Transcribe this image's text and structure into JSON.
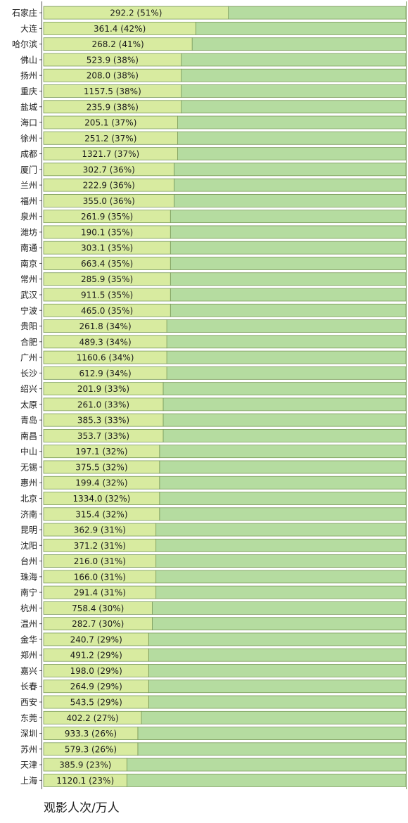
{
  "chart_data": {
    "type": "bar",
    "orientation": "horizontal",
    "stacked": "percent",
    "categories": [
      "石家庄",
      "大连",
      "哈尔滨",
      "佛山",
      "扬州",
      "重庆",
      "盐城",
      "海口",
      "徐州",
      "成都",
      "厦门",
      "兰州",
      "福州",
      "泉州",
      "潍坊",
      "南通",
      "南京",
      "常州",
      "武汉",
      "宁波",
      "贵阳",
      "合肥",
      "广州",
      "长沙",
      "绍兴",
      "太原",
      "青岛",
      "南昌",
      "中山",
      "无锡",
      "惠州",
      "北京",
      "济南",
      "昆明",
      "沈阳",
      "台州",
      "珠海",
      "南宁",
      "杭州",
      "温州",
      "金华",
      "郑州",
      "嘉兴",
      "长春",
      "西安",
      "东莞",
      "深圳",
      "苏州",
      "天津",
      "上海"
    ],
    "values": [
      292.2,
      361.4,
      268.2,
      523.9,
      208.0,
      1157.5,
      235.9,
      205.1,
      251.2,
      1321.7,
      302.7,
      222.9,
      355.0,
      261.9,
      190.1,
      303.1,
      663.4,
      285.9,
      911.5,
      465.0,
      261.8,
      489.3,
      1160.6,
      612.9,
      201.9,
      261.0,
      385.3,
      353.7,
      197.1,
      375.5,
      199.4,
      1334.0,
      315.4,
      362.9,
      371.2,
      216.0,
      166.0,
      291.4,
      758.4,
      282.7,
      240.7,
      491.2,
      198.0,
      264.9,
      543.5,
      402.2,
      933.3,
      579.3,
      385.9,
      1120.1
    ],
    "percents": [
      51,
      42,
      41,
      38,
      38,
      38,
      38,
      37,
      37,
      37,
      36,
      36,
      36,
      35,
      35,
      35,
      35,
      35,
      35,
      35,
      34,
      34,
      34,
      34,
      33,
      33,
      33,
      33,
      32,
      32,
      32,
      32,
      32,
      31,
      31,
      31,
      31,
      31,
      30,
      30,
      29,
      29,
      29,
      29,
      29,
      27,
      26,
      26,
      23,
      23
    ],
    "data_labels": [
      "292.2 (51%)",
      "361.4 (42%)",
      "268.2 (41%)",
      "523.9 (38%)",
      "208.0 (38%)",
      "1157.5 (38%)",
      "235.9 (38%)",
      "205.1 (37%)",
      "251.2 (37%)",
      "1321.7 (37%)",
      "302.7 (36%)",
      "222.9 (36%)",
      "355.0 (36%)",
      "261.9 (35%)",
      "190.1 (35%)",
      "303.1 (35%)",
      "663.4 (35%)",
      "285.9 (35%)",
      "911.5 (35%)",
      "465.0 (35%)",
      "261.8 (34%)",
      "489.3 (34%)",
      "1160.6 (34%)",
      "612.9 (34%)",
      "201.9 (33%)",
      "261.0 (33%)",
      "385.3 (33%)",
      "353.7 (33%)",
      "197.1 (32%)",
      "375.5 (32%)",
      "199.4 (32%)",
      "1334.0 (32%)",
      "315.4 (32%)",
      "362.9 (31%)",
      "371.2 (31%)",
      "216.0 (31%)",
      "166.0 (31%)",
      "291.4 (31%)",
      "758.4 (30%)",
      "282.7 (30%)",
      "240.7 (29%)",
      "491.2 (29%)",
      "198.0 (29%)",
      "264.9 (29%)",
      "543.5 (29%)",
      "402.2 (27%)",
      "933.3 (26%)",
      "579.3 (26%)",
      "385.9 (23%)",
      "1120.1 (23%)"
    ],
    "xlim": [
      0,
      100
    ],
    "grid": false,
    "colors": {
      "primary_fill": "#d8eba0",
      "remainder_fill": "#b5dca0",
      "bar_border": "#7a9a5a"
    }
  },
  "footer_label": "观影人次/万人"
}
